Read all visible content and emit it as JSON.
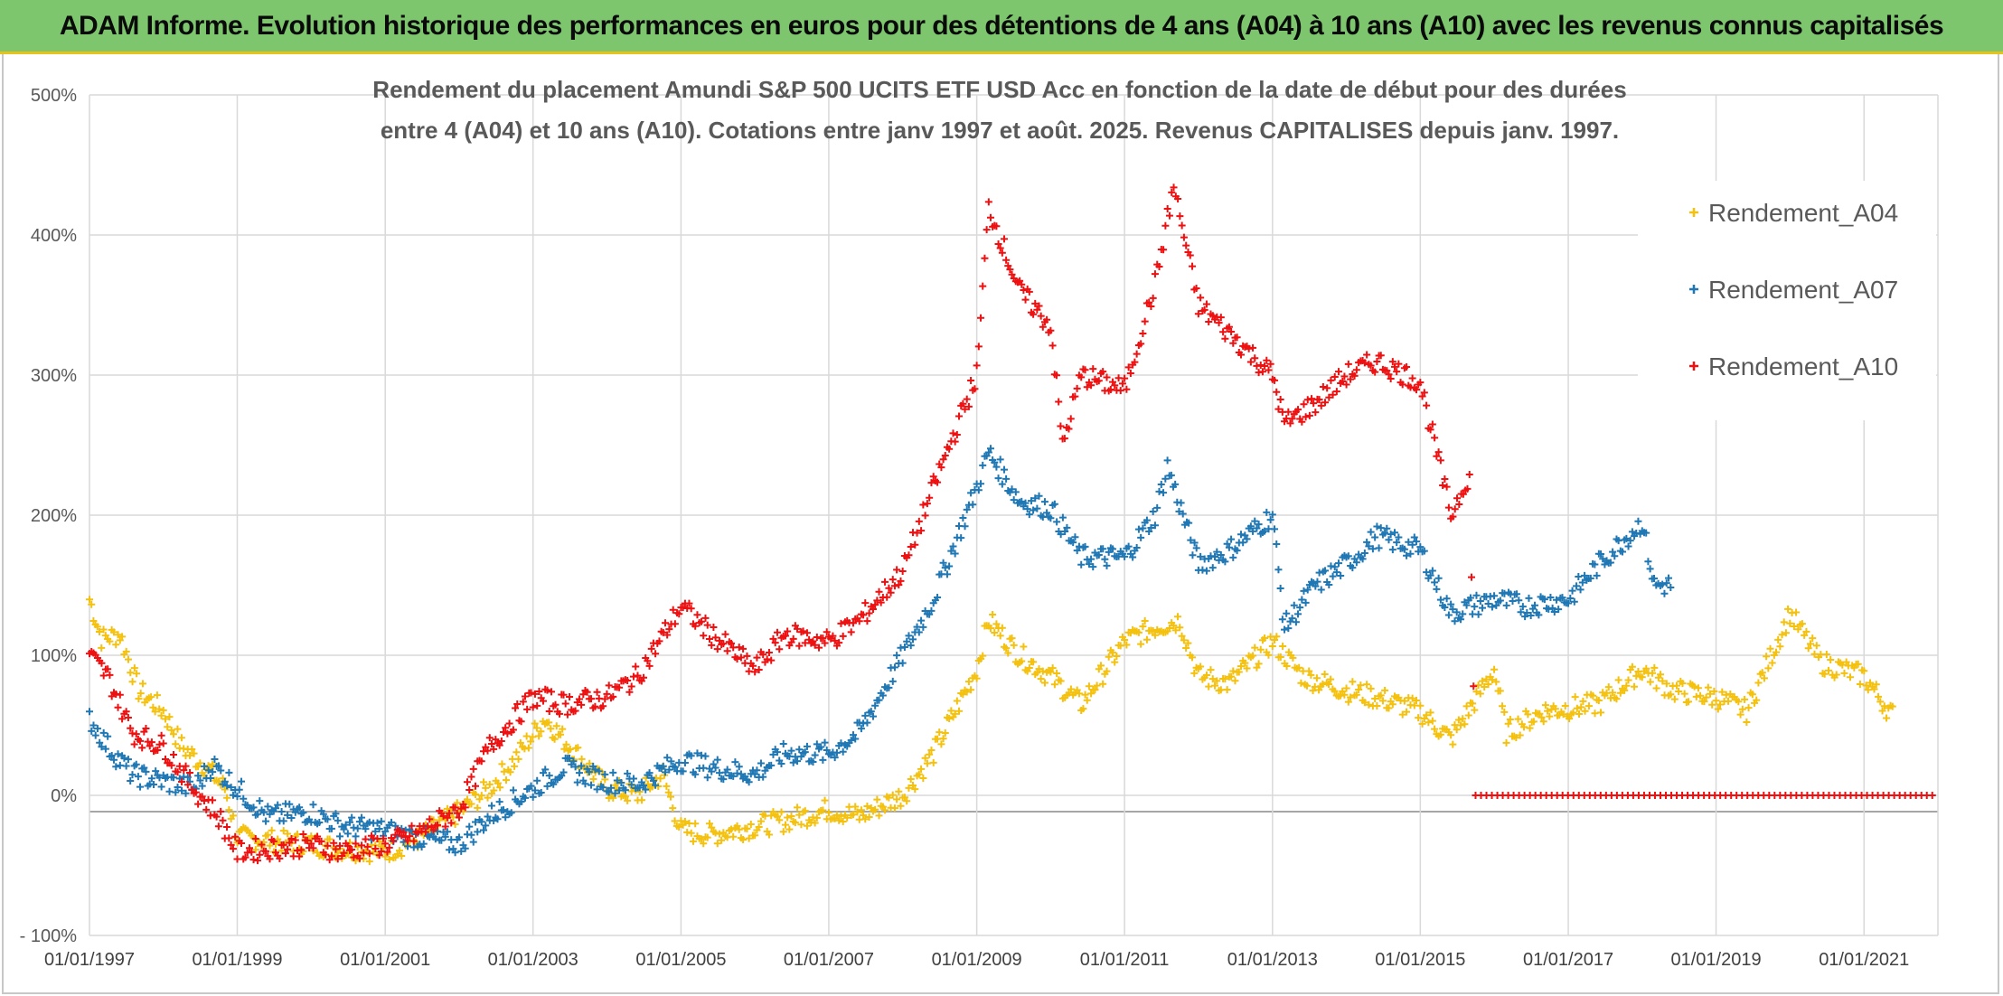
{
  "banner": {
    "title": "ADAM Informe. Evolution historique des performances en euros pour des détentions de 4 ans (A04) à 10 ans (A10) avec les revenus connus capitalisés"
  },
  "chart_data": {
    "type": "scatter",
    "title_line1": "Rendement du placement Amundi S&P 500 UCITS ETF USD Acc en fonction de la date de début pour des durées",
    "title_line2": "entre 4 (A04) et 10 ans (A10). Cotations entre janv 1997 et août. 2025. Revenus CAPITALISES depuis janv. 1997.",
    "xlabel": "",
    "ylabel": "",
    "x_range": [
      "1997-01-01",
      "2022-01-01"
    ],
    "ylim": [
      -100,
      500
    ],
    "y_ticks": [
      -100,
      0,
      100,
      200,
      300,
      400,
      500
    ],
    "y_tick_labels": [
      "- 100%",
      "0%",
      "100%",
      "200%",
      "300%",
      "400%",
      "500%"
    ],
    "x_ticks": [
      "1997-01-01",
      "1999-01-01",
      "2001-01-01",
      "2003-01-01",
      "2005-01-01",
      "2007-01-01",
      "2009-01-01",
      "2011-01-01",
      "2013-01-01",
      "2015-01-01",
      "2017-01-01",
      "2019-01-01",
      "2021-01-01"
    ],
    "x_tick_labels": [
      "01/01/1997",
      "01/01/1999",
      "01/01/2001",
      "01/01/2003",
      "01/01/2005",
      "01/01/2007",
      "01/01/2009",
      "01/01/2011",
      "01/01/2013",
      "01/01/2015",
      "01/01/2017",
      "01/01/2019",
      "01/01/2021"
    ],
    "legend_position": "right",
    "grid": true,
    "marker": "+",
    "series": [
      {
        "name": "Rendement_A04",
        "color": "#f4c10f",
        "points": [
          [
            "1997-01-01",
            140
          ],
          [
            "1997-03-01",
            112
          ],
          [
            "1997-06-01",
            115
          ],
          [
            "1997-09-01",
            75
          ],
          [
            "1998-01-01",
            60
          ],
          [
            "1998-04-01",
            35
          ],
          [
            "1998-08-01",
            20
          ],
          [
            "1998-11-01",
            5
          ],
          [
            "1999-01-01",
            -30
          ],
          [
            "1999-06-01",
            -32
          ],
          [
            "2000-01-01",
            -35
          ],
          [
            "2000-06-01",
            -38
          ],
          [
            "2001-01-01",
            -40
          ],
          [
            "2001-06-01",
            -32
          ],
          [
            "2002-01-01",
            -12
          ],
          [
            "2002-06-01",
            5
          ],
          [
            "2002-10-01",
            25
          ],
          [
            "2003-03-01",
            55
          ],
          [
            "2003-08-01",
            30
          ],
          [
            "2004-01-01",
            5
          ],
          [
            "2004-06-01",
            0
          ],
          [
            "2004-10-01",
            15
          ],
          [
            "2005-01-01",
            -25
          ],
          [
            "2005-06-01",
            -28
          ],
          [
            "2006-01-01",
            -22
          ],
          [
            "2006-06-01",
            -18
          ],
          [
            "2007-01-01",
            -10
          ],
          [
            "2007-06-01",
            -15
          ],
          [
            "2008-01-01",
            0
          ],
          [
            "2008-06-01",
            30
          ],
          [
            "2009-01-01",
            90
          ],
          [
            "2009-03-01",
            125
          ],
          [
            "2009-08-01",
            100
          ],
          [
            "2010-01-01",
            85
          ],
          [
            "2010-06-01",
            65
          ],
          [
            "2011-01-01",
            110
          ],
          [
            "2011-06-01",
            120
          ],
          [
            "2011-10-01",
            125
          ],
          [
            "2012-01-01",
            85
          ],
          [
            "2012-06-01",
            80
          ],
          [
            "2013-01-01",
            110
          ],
          [
            "2013-06-01",
            85
          ],
          [
            "2014-01-01",
            75
          ],
          [
            "2014-06-01",
            70
          ],
          [
            "2015-01-01",
            60
          ],
          [
            "2015-06-01",
            40
          ],
          [
            "2016-01-01",
            90
          ],
          [
            "2016-03-01",
            45
          ],
          [
            "2016-09-01",
            60
          ],
          [
            "2017-06-01",
            65
          ],
          [
            "2018-01-01",
            90
          ],
          [
            "2018-06-01",
            75
          ],
          [
            "2019-01-01",
            70
          ],
          [
            "2019-06-01",
            60
          ],
          [
            "2020-01-01",
            130
          ],
          [
            "2020-06-01",
            95
          ],
          [
            "2021-01-01",
            85
          ],
          [
            "2021-06-01",
            55
          ]
        ]
      },
      {
        "name": "Rendement_A07",
        "color": "#1f77b4",
        "points": [
          [
            "1997-01-01",
            55
          ],
          [
            "1997-04-01",
            35
          ],
          [
            "1997-08-01",
            15
          ],
          [
            "1998-01-01",
            10
          ],
          [
            "1998-06-01",
            5
          ],
          [
            "1998-09-01",
            22
          ],
          [
            "1999-01-01",
            5
          ],
          [
            "1999-06-01",
            -15
          ],
          [
            "2000-01-01",
            -12
          ],
          [
            "2000-06-01",
            -22
          ],
          [
            "2001-01-01",
            -25
          ],
          [
            "2001-06-01",
            -30
          ],
          [
            "2002-01-01",
            -35
          ],
          [
            "2002-06-01",
            -15
          ],
          [
            "2003-01-01",
            5
          ],
          [
            "2003-06-01",
            20
          ],
          [
            "2004-01-01",
            10
          ],
          [
            "2004-06-01",
            8
          ],
          [
            "2005-01-01",
            25
          ],
          [
            "2005-06-01",
            20
          ],
          [
            "2006-01-01",
            15
          ],
          [
            "2006-06-01",
            30
          ],
          [
            "2007-01-01",
            30
          ],
          [
            "2007-06-01",
            45
          ],
          [
            "2008-01-01",
            100
          ],
          [
            "2008-06-01",
            140
          ],
          [
            "2009-01-01",
            220
          ],
          [
            "2009-03-01",
            245
          ],
          [
            "2009-08-01",
            210
          ],
          [
            "2010-01-01",
            205
          ],
          [
            "2010-06-01",
            170
          ],
          [
            "2011-01-01",
            170
          ],
          [
            "2011-06-01",
            200
          ],
          [
            "2011-08-01",
            235
          ],
          [
            "2012-01-01",
            165
          ],
          [
            "2012-06-01",
            175
          ],
          [
            "2013-01-01",
            200
          ],
          [
            "2013-03-01",
            120
          ],
          [
            "2013-08-01",
            150
          ],
          [
            "2014-01-01",
            165
          ],
          [
            "2014-06-01",
            185
          ],
          [
            "2015-01-01",
            175
          ],
          [
            "2015-06-01",
            130
          ],
          [
            "2016-01-01",
            140
          ],
          [
            "2016-06-01",
            135
          ],
          [
            "2017-01-01",
            140
          ],
          [
            "2017-06-01",
            165
          ],
          [
            "2018-01-01",
            195
          ],
          [
            "2018-03-01",
            150
          ],
          [
            "2018-06-01",
            150
          ]
        ]
      },
      {
        "name": "Rendement_A10",
        "color": "#ee1111",
        "points": [
          [
            "1997-01-01",
            100
          ],
          [
            "1997-04-01",
            85
          ],
          [
            "1997-08-01",
            45
          ],
          [
            "1998-01-01",
            35
          ],
          [
            "1998-06-01",
            5
          ],
          [
            "1998-10-01",
            -15
          ],
          [
            "1999-01-01",
            -40
          ],
          [
            "1999-06-01",
            -38
          ],
          [
            "2000-01-01",
            -35
          ],
          [
            "2000-06-01",
            -40
          ],
          [
            "2001-01-01",
            -35
          ],
          [
            "2001-06-01",
            -28
          ],
          [
            "2002-01-01",
            -10
          ],
          [
            "2002-06-01",
            35
          ],
          [
            "2003-01-01",
            70
          ],
          [
            "2003-06-01",
            65
          ],
          [
            "2004-01-01",
            70
          ],
          [
            "2004-06-01",
            85
          ],
          [
            "2005-01-01",
            135
          ],
          [
            "2005-06-01",
            115
          ],
          [
            "2006-01-01",
            90
          ],
          [
            "2006-06-01",
            115
          ],
          [
            "2007-01-01",
            110
          ],
          [
            "2007-06-01",
            125
          ],
          [
            "2008-01-01",
            160
          ],
          [
            "2008-06-01",
            220
          ],
          [
            "2009-01-01",
            300
          ],
          [
            "2009-03-01",
            420
          ],
          [
            "2009-08-01",
            360
          ],
          [
            "2010-01-01",
            335
          ],
          [
            "2010-03-01",
            250
          ],
          [
            "2010-06-01",
            300
          ],
          [
            "2011-01-01",
            290
          ],
          [
            "2011-06-01",
            365
          ],
          [
            "2011-09-01",
            435
          ],
          [
            "2012-01-01",
            350
          ],
          [
            "2012-06-01",
            330
          ],
          [
            "2013-01-01",
            300
          ],
          [
            "2013-03-01",
            265
          ],
          [
            "2013-08-01",
            280
          ],
          [
            "2014-01-01",
            300
          ],
          [
            "2014-06-01",
            310
          ],
          [
            "2015-01-01",
            295
          ],
          [
            "2015-06-01",
            200
          ],
          [
            "2015-09-01",
            230
          ],
          [
            "2015-10-01",
            0
          ],
          [
            "2021-12-31",
            0
          ]
        ]
      }
    ]
  }
}
